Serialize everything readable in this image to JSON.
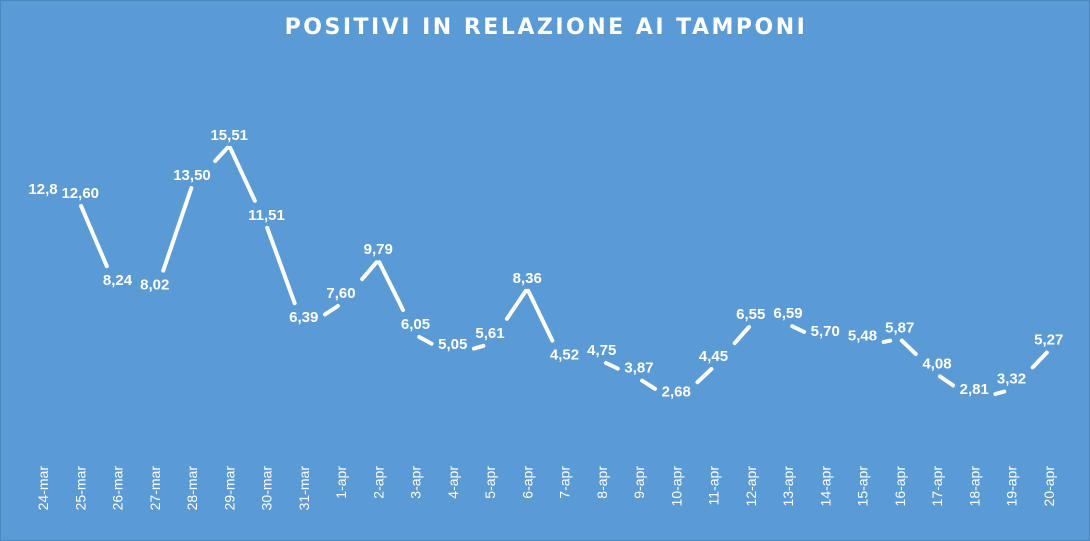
{
  "chart_data": {
    "type": "line",
    "title": "POSITIVI IN RELAZIONE AI TAMPONI",
    "xlabel": "",
    "ylabel": "",
    "ylim": [
      0,
      17.5
    ],
    "grid": false,
    "legend": "none",
    "categories": [
      "24-mar",
      "25-mar",
      "26-mar",
      "27-mar",
      "28-mar",
      "29-mar",
      "30-mar",
      "31-mar",
      "1-apr",
      "2-apr",
      "3-apr",
      "4-apr",
      "5-apr",
      "6-apr",
      "7-apr",
      "8-apr",
      "9-apr",
      "10-apr",
      "11-apr",
      "12-apr",
      "13-apr",
      "14-apr",
      "15-apr",
      "16-apr",
      "17-apr",
      "18-apr",
      "19-apr",
      "20-apr"
    ],
    "values": [
      12.8,
      12.6,
      8.24,
      8.02,
      13.5,
      15.51,
      11.51,
      6.39,
      7.6,
      9.79,
      6.05,
      5.05,
      5.61,
      8.36,
      4.52,
      4.75,
      3.87,
      2.68,
      4.45,
      6.55,
      6.59,
      5.7,
      5.48,
      5.87,
      4.08,
      2.81,
      3.32,
      5.27
    ],
    "data_labels": [
      "12,8",
      "12,60",
      "8,24",
      "8,02",
      "13,50",
      "15,51",
      "11,51",
      "6,39",
      "7,60",
      "9,79",
      "6,05",
      "5,05",
      "5,61",
      "8,36",
      "4,52",
      "4,75",
      "3,87",
      "2,68",
      "4,45",
      "6,55",
      "6,59",
      "5,70",
      "5,48",
      "5,87",
      "4,08",
      "2,81",
      "3,32",
      "5,27"
    ],
    "colors": {
      "background": "#5b9bd5",
      "line": "#ffffff",
      "text": "#ffffff"
    }
  }
}
